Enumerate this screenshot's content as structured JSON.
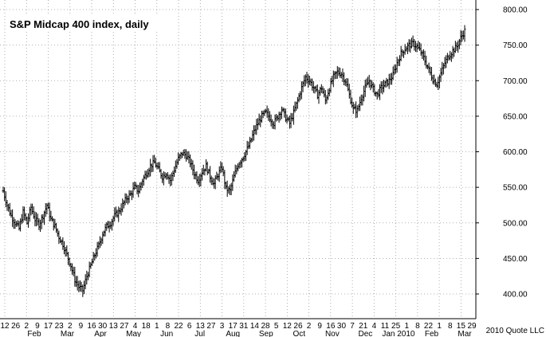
{
  "chart_data": {
    "type": "ohlc",
    "title": "S&P Midcap 400 index, daily",
    "credit": "2010 Quote LLC",
    "y_ticks": [
      400,
      450,
      500,
      550,
      600,
      650,
      700,
      750,
      800
    ],
    "y_tick_labels": [
      "400.00",
      "450.00",
      "500.00",
      "550.00",
      "600.00",
      "650.00",
      "700.00",
      "750.00",
      "800.00"
    ],
    "ylim": [
      385,
      800
    ],
    "x_day_labels": [
      "12",
      "26",
      "2",
      "9",
      "17",
      "23",
      "2",
      "9",
      "16",
      "30",
      "13",
      "27",
      "4",
      "18",
      "1",
      "8",
      "22",
      "6",
      "13",
      "27",
      "3",
      "17",
      "31",
      "14",
      "28",
      "5",
      "12",
      "26",
      "2",
      "9",
      "16",
      "30",
      "7",
      "21",
      "4",
      "11",
      "25",
      "1",
      "8",
      "22",
      "1",
      "8",
      "15",
      "29"
    ],
    "x_month_labels": [
      "Feb",
      "Mar",
      "Apr",
      "May",
      "Jun",
      "Jul",
      "Aug",
      "Sep",
      "Oct",
      "Nov",
      "Dec",
      "Jan 2010",
      "Feb",
      "Mar"
    ],
    "grid": true,
    "price_path": [
      545,
      525,
      510,
      500,
      492,
      515,
      500,
      522,
      505,
      498,
      510,
      525,
      505,
      495,
      480,
      470,
      455,
      440,
      420,
      410,
      405,
      425,
      440,
      455,
      468,
      485,
      495,
      500,
      510,
      515,
      525,
      535,
      540,
      550,
      545,
      560,
      570,
      580,
      585,
      575,
      565,
      570,
      560,
      575,
      590,
      598,
      595,
      585,
      570,
      560,
      572,
      580,
      565,
      555,
      568,
      578,
      548,
      545,
      565,
      582,
      590,
      600,
      612,
      628,
      640,
      650,
      655,
      648,
      640,
      650,
      660,
      648,
      640,
      655,
      672,
      690,
      705,
      700,
      690,
      680,
      690,
      672,
      690,
      705,
      712,
      710,
      700,
      680,
      660,
      658,
      676,
      690,
      700,
      688,
      680,
      690,
      695,
      700,
      708,
      725,
      738,
      745,
      750,
      752,
      748,
      740,
      728,
      715,
      702,
      695,
      710,
      725,
      735,
      742,
      748,
      760,
      770
    ]
  }
}
